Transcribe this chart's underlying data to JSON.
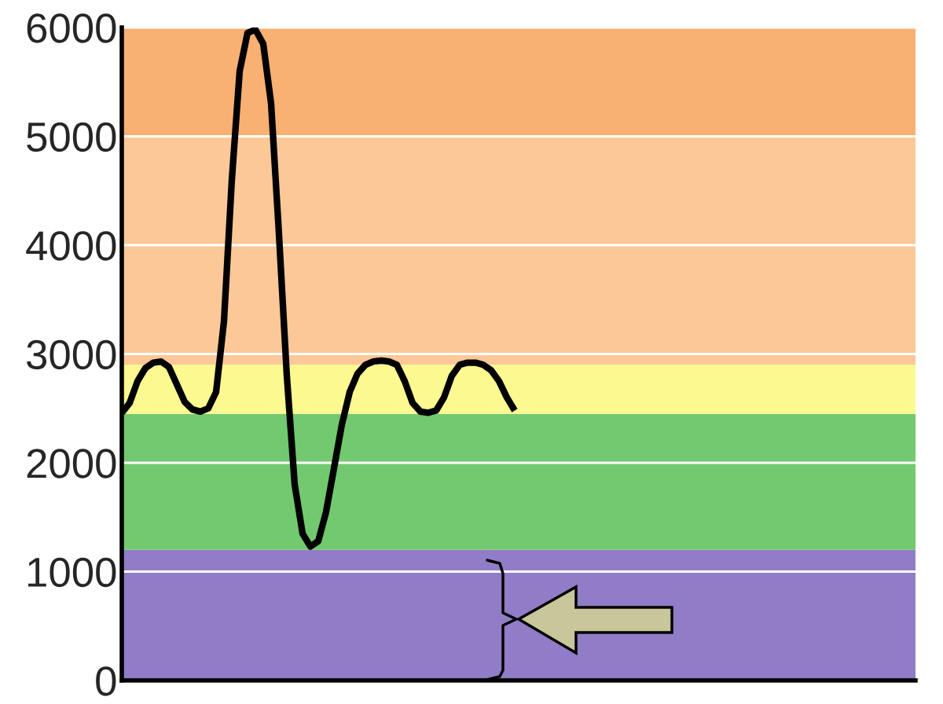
{
  "chart_data": {
    "type": "line",
    "categories": [
      null,
      null,
      null,
      null,
      null,
      null,
      null,
      null,
      null,
      null,
      null,
      null,
      null,
      null,
      null,
      null,
      null,
      null,
      null,
      null,
      null,
      null,
      null,
      null,
      null,
      null,
      null,
      null,
      null,
      null,
      null,
      null,
      null,
      null,
      null,
      null,
      null,
      null,
      null,
      null,
      null,
      null,
      null,
      null,
      null,
      null,
      null,
      null,
      null,
      null,
      null,
      null,
      null,
      null,
      null,
      null,
      null,
      null,
      null,
      null,
      null,
      null,
      null,
      null,
      null,
      null,
      null,
      null,
      null,
      null,
      null,
      null,
      null,
      null,
      null,
      null,
      null,
      null,
      null,
      null,
      null,
      null,
      null,
      null,
      null,
      null,
      null,
      null,
      null,
      null,
      null,
      null,
      null,
      null,
      null,
      null,
      null,
      null,
      null,
      null,
      null,
      null
    ],
    "series": [
      {
        "color": "#000000",
        "values": [
          2460,
          2550,
          2750,
          2870,
          2920,
          2930,
          2880,
          2720,
          2560,
          2490,
          2470,
          2500,
          2650,
          3300,
          4600,
          5600,
          5950,
          5980,
          5850,
          5300,
          4100,
          2800,
          1800,
          1350,
          1230,
          1280,
          1550,
          1950,
          2350,
          2650,
          2820,
          2900,
          2930,
          2940,
          2930,
          2900,
          2750,
          2550,
          2470,
          2460,
          2480,
          2600,
          2800,
          2900,
          2920,
          2920,
          2900,
          2850,
          2750,
          2600,
          2480,
          null,
          null,
          null,
          null,
          null,
          null,
          null,
          null,
          null,
          null,
          null,
          null,
          null,
          null,
          null,
          null,
          null,
          null,
          null,
          null,
          null,
          null,
          null,
          null,
          null,
          null,
          null,
          null,
          null,
          null,
          null,
          null,
          null,
          null,
          null,
          null,
          null,
          null,
          null,
          null,
          null,
          null,
          null,
          null,
          null,
          null,
          null,
          null,
          null,
          null,
          null
        ]
      }
    ],
    "ylim": [
      0,
      6000
    ],
    "yticks": [
      0,
      1000,
      2000,
      3000,
      4000,
      5000,
      6000
    ],
    "grid": "y",
    "line_style": "solid",
    "marker": "none",
    "tick_labels": "y",
    "bands": [
      {
        "axis": "y",
        "from": 0,
        "to": 1200,
        "color": "#917cc7"
      },
      {
        "axis": "y",
        "from": 1200,
        "to": 2450,
        "color": "#72c970"
      },
      {
        "axis": "y",
        "from": 2450,
        "to": 2900,
        "color": "#fbf98f"
      },
      {
        "axis": "y",
        "from": 2900,
        "to": 5000,
        "color": "#fcc897"
      },
      {
        "axis": "y",
        "from": 5000,
        "to": 6000,
        "color": "#f9b073"
      }
    ]
  }
}
